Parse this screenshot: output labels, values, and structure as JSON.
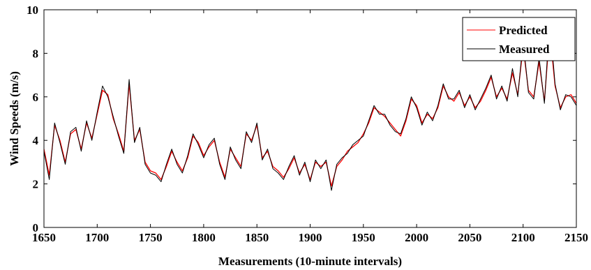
{
  "chart_data": {
    "type": "line",
    "xlabel": "Measurements (10-minute intervals)",
    "ylabel": "Wind Speeds (m/s)",
    "xlim": [
      1650,
      2150
    ],
    "ylim": [
      0,
      10
    ],
    "xticks": [
      1650,
      1700,
      1750,
      1800,
      1850,
      1900,
      1950,
      2000,
      2050,
      2100,
      2150
    ],
    "yticks": [
      0,
      2,
      4,
      6,
      8,
      10
    ],
    "grid": false,
    "legend_position": "top-right",
    "series": [
      {
        "name": "Predicted",
        "color": "#ff0000",
        "x": [
          1650,
          1655,
          1660,
          1665,
          1670,
          1675,
          1680,
          1685,
          1690,
          1695,
          1700,
          1705,
          1710,
          1715,
          1720,
          1725,
          1730,
          1735,
          1740,
          1745,
          1750,
          1755,
          1760,
          1765,
          1770,
          1775,
          1780,
          1785,
          1790,
          1795,
          1800,
          1805,
          1810,
          1815,
          1820,
          1825,
          1830,
          1835,
          1840,
          1845,
          1850,
          1855,
          1860,
          1865,
          1870,
          1875,
          1880,
          1885,
          1890,
          1895,
          1900,
          1905,
          1910,
          1915,
          1920,
          1925,
          1930,
          1935,
          1940,
          1945,
          1950,
          1955,
          1960,
          1965,
          1970,
          1975,
          1980,
          1985,
          1990,
          1995,
          2000,
          2005,
          2010,
          2015,
          2020,
          2025,
          2030,
          2035,
          2040,
          2045,
          2050,
          2055,
          2060,
          2065,
          2070,
          2075,
          2080,
          2085,
          2090,
          2095,
          2100,
          2105,
          2110,
          2115,
          2120,
          2125,
          2130,
          2135,
          2140,
          2145,
          2150
        ],
        "values": [
          3.6,
          2.4,
          4.7,
          4.0,
          3.0,
          4.3,
          4.5,
          3.6,
          4.8,
          4.1,
          5.2,
          6.3,
          6.1,
          5.0,
          4.3,
          3.5,
          6.6,
          4.0,
          4.5,
          3.0,
          2.6,
          2.5,
          2.2,
          2.8,
          3.5,
          3.0,
          2.6,
          3.2,
          4.2,
          3.9,
          3.3,
          3.7,
          4.0,
          3.0,
          2.3,
          3.6,
          3.2,
          2.8,
          4.3,
          4.0,
          4.7,
          3.2,
          3.5,
          2.8,
          2.6,
          2.3,
          2.7,
          3.2,
          2.5,
          2.9,
          2.2,
          3.0,
          2.8,
          3.0,
          1.9,
          2.8,
          3.1,
          3.5,
          3.7,
          3.9,
          4.3,
          4.8,
          5.5,
          5.3,
          5.1,
          4.8,
          4.5,
          4.2,
          4.9,
          5.9,
          5.6,
          4.8,
          5.2,
          5.0,
          5.5,
          6.5,
          6.0,
          5.8,
          6.2,
          5.6,
          6.0,
          5.5,
          5.8,
          6.3,
          6.9,
          6.0,
          6.4,
          5.9,
          7.1,
          6.1,
          8.3,
          6.3,
          6.0,
          7.6,
          5.8,
          9.0,
          6.5,
          5.5,
          6.0,
          6.1,
          5.7
        ]
      },
      {
        "name": "Measured",
        "color": "#000000",
        "x": [
          1650,
          1655,
          1660,
          1665,
          1670,
          1675,
          1680,
          1685,
          1690,
          1695,
          1700,
          1705,
          1710,
          1715,
          1720,
          1725,
          1730,
          1735,
          1740,
          1745,
          1750,
          1755,
          1760,
          1765,
          1770,
          1775,
          1780,
          1785,
          1790,
          1795,
          1800,
          1805,
          1810,
          1815,
          1820,
          1825,
          1830,
          1835,
          1840,
          1845,
          1850,
          1855,
          1860,
          1865,
          1870,
          1875,
          1880,
          1885,
          1890,
          1895,
          1900,
          1905,
          1910,
          1915,
          1920,
          1925,
          1930,
          1935,
          1940,
          1945,
          1950,
          1955,
          1960,
          1965,
          1970,
          1975,
          1980,
          1985,
          1990,
          1995,
          2000,
          2005,
          2010,
          2015,
          2020,
          2025,
          2030,
          2035,
          2040,
          2045,
          2050,
          2055,
          2060,
          2065,
          2070,
          2075,
          2080,
          2085,
          2090,
          2095,
          2100,
          2105,
          2110,
          2115,
          2120,
          2125,
          2130,
          2135,
          2140,
          2145,
          2150
        ],
        "values": [
          3.5,
          2.2,
          4.8,
          3.9,
          2.9,
          4.4,
          4.6,
          3.5,
          4.9,
          4.0,
          5.3,
          6.5,
          6.0,
          5.1,
          4.2,
          3.4,
          6.8,
          3.9,
          4.6,
          2.9,
          2.5,
          2.4,
          2.1,
          2.9,
          3.6,
          2.9,
          2.5,
          3.3,
          4.3,
          3.8,
          3.2,
          3.8,
          4.1,
          2.9,
          2.2,
          3.7,
          3.1,
          2.7,
          4.4,
          3.9,
          4.8,
          3.1,
          3.6,
          2.7,
          2.5,
          2.2,
          2.8,
          3.3,
          2.4,
          3.0,
          2.1,
          3.1,
          2.7,
          3.1,
          1.7,
          2.9,
          3.2,
          3.4,
          3.8,
          4.0,
          4.2,
          4.9,
          5.6,
          5.2,
          5.2,
          4.7,
          4.4,
          4.3,
          5.0,
          6.0,
          5.5,
          4.7,
          5.3,
          4.9,
          5.6,
          6.6,
          5.9,
          5.9,
          6.3,
          5.5,
          6.1,
          5.4,
          5.9,
          6.4,
          7.0,
          5.9,
          6.5,
          5.8,
          7.3,
          6.0,
          8.6,
          6.2,
          5.9,
          7.8,
          5.7,
          9.5,
          6.6,
          5.4,
          6.1,
          6.0,
          5.6
        ]
      }
    ]
  }
}
